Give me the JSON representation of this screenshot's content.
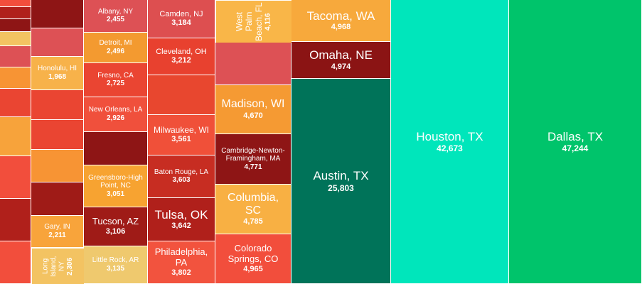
{
  "chart_data": {
    "type": "treemap",
    "title": "",
    "tiles": [
      {
        "label": "Dallas, TX",
        "value": 47244,
        "display": "47,244",
        "color": "#00c46b"
      },
      {
        "label": "Houston, TX",
        "value": 42673,
        "display": "42,673",
        "color": "#00e6bb"
      },
      {
        "label": "Austin, TX",
        "value": 25803,
        "display": "25,803",
        "color": "#007359"
      },
      {
        "label": "Omaha, NE",
        "value": 4974,
        "display": "4,974",
        "color": "#8b1414"
      },
      {
        "label": "Tacoma, WA",
        "value": 4968,
        "display": "4,968",
        "color": "#f7a93c"
      },
      {
        "label": "Colorado Springs, CO",
        "value": 4965,
        "display": "4,965",
        "color": "#f24e3c"
      },
      {
        "label": "Columbia, SC",
        "value": 4785,
        "display": "4,785",
        "color": "#f8b043"
      },
      {
        "label": "Cambridge-Newton-Framingham, MA",
        "value": 4771,
        "display": "4,771",
        "color": "#8e1515"
      },
      {
        "label": "Madison, WI",
        "value": 4670,
        "display": "4,670",
        "color": "#f59a33"
      },
      {
        "label": "West Palm Beach, FL",
        "value": 4116,
        "display": "4,116",
        "color": "#f9b648"
      },
      {
        "label": "Philadelphia, PA",
        "value": 3802,
        "display": "3,802",
        "color": "#f2533e"
      },
      {
        "label": "Tulsa, OK",
        "value": 3642,
        "display": "3,642",
        "color": "#b0201b"
      },
      {
        "label": "Baton Rouge, LA",
        "value": 3603,
        "display": "3,603",
        "color": "#c72d22"
      },
      {
        "label": "Milwaukee, WI",
        "value": 3561,
        "display": "3,561",
        "color": "#f05039"
      },
      {
        "label": "Cleveland, OH",
        "value": 3212,
        "display": "3,212",
        "color": "#e8412f"
      },
      {
        "label": "Camden, NJ",
        "value": 3184,
        "display": "3,184",
        "color": "#dd4f50"
      },
      {
        "label": "Little Rock, AR",
        "value": 3135,
        "display": "3,135",
        "color": "#efc96e"
      },
      {
        "label": "Tucson, AZ",
        "value": 3106,
        "display": "3,106",
        "color": "#9f1b17"
      },
      {
        "label": "Greensboro-High Point, NC",
        "value": 3051,
        "display": "3,051",
        "color": "#f7a331"
      },
      {
        "label": "New Orleans, LA",
        "value": 2926,
        "display": "2,926",
        "color": "#f0503c"
      },
      {
        "label": "Fresno, CA",
        "value": 2725,
        "display": "2,725",
        "color": "#ea4532"
      },
      {
        "label": "Detroit, MI",
        "value": 2496,
        "display": "2,496",
        "color": "#f39a30"
      },
      {
        "label": "Albany, NY",
        "value": 2455,
        "display": "2,455",
        "color": "#dd5155"
      },
      {
        "label": "Long Island, NY",
        "value": 2306,
        "display": "2,306",
        "color": "#f3c362"
      },
      {
        "label": "Gary, IN",
        "value": 2211,
        "display": "2,211",
        "color": "#f8a43b"
      },
      {
        "label": "Honolulu, HI",
        "value": 1968,
        "display": "1,968",
        "color": "#f7b24a"
      }
    ]
  }
}
